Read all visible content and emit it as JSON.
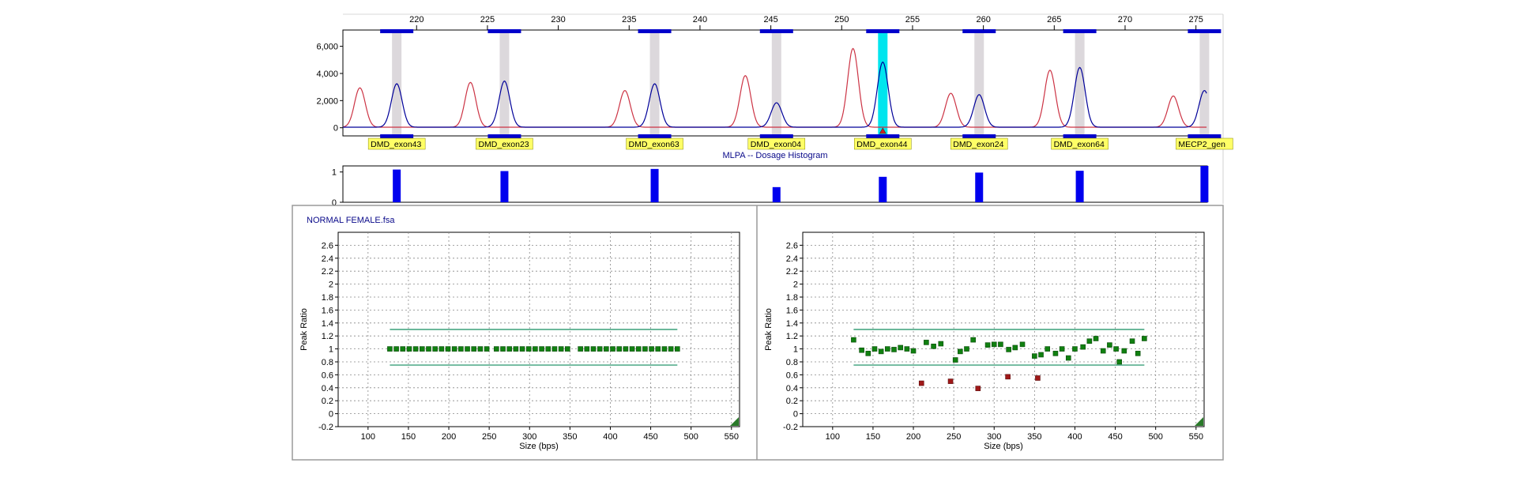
{
  "chart_data": [
    {
      "type": "line",
      "panel": "electropherogram",
      "x_ticks": [
        220,
        225,
        230,
        235,
        240,
        245,
        250,
        255,
        260,
        265,
        270,
        275
      ],
      "xlim": [
        214.8,
        275.8
      ],
      "y_ticks": [
        "6,000",
        "4,000",
        "2,000",
        "0"
      ],
      "y_tick_values": [
        6000,
        4000,
        2000,
        0
      ],
      "ylim": [
        -600,
        7200
      ],
      "colors": {
        "sample": "#000099",
        "reference": "#cc3344",
        "selected": "#00e5ee",
        "band": "#dcd8dc",
        "marker": "#0000cc"
      },
      "selected_peak": 4,
      "peaks": [
        {
          "label": "DMD_exon43",
          "size": 218.6,
          "height": 3200,
          "ref_size": 216.0,
          "ref_height": 2900
        },
        {
          "label": "DMD_exon23",
          "size": 226.2,
          "height": 3400,
          "ref_size": 223.8,
          "ref_height": 3300
        },
        {
          "label": "DMD_exon63",
          "size": 236.8,
          "height": 3200,
          "ref_size": 234.7,
          "ref_height": 2700
        },
        {
          "label": "DMD_exon04",
          "size": 245.4,
          "height": 1800,
          "ref_size": 243.2,
          "ref_height": 3800
        },
        {
          "label": "DMD_exon44",
          "size": 252.9,
          "height": 4800,
          "ref_size": 250.8,
          "ref_height": 5800
        },
        {
          "label": "DMD_exon24",
          "size": 259.7,
          "height": 2400,
          "ref_size": 257.7,
          "ref_height": 2500
        },
        {
          "label": "DMD_exon64",
          "size": 266.8,
          "height": 4400,
          "ref_size": 264.7,
          "ref_height": 4200
        },
        {
          "label": "MECP2_gen",
          "size": 275.6,
          "height": 2700,
          "ref_size": 273.4,
          "ref_height": 2300
        }
      ]
    },
    {
      "type": "bar",
      "panel": "dosage-histogram",
      "title": "MLPA -- Dosage Histogram",
      "y_ticks": [
        "1",
        "0"
      ],
      "ylim": [
        0,
        1.2
      ],
      "color": "#0000ee",
      "values": [
        1.08,
        1.03,
        1.1,
        0.5,
        0.84,
        0.98,
        1.04,
        1.2
      ]
    },
    {
      "type": "scatter",
      "panel": "left",
      "title": "NORMAL FEMALE.fsa",
      "xlabel": "Size (bps)",
      "ylabel": "Peak Ratio",
      "xlim": [
        63,
        560
      ],
      "ylim": [
        -0.2,
        2.8
      ],
      "x_ticks": [
        "100",
        "150",
        "200",
        "250",
        "300",
        "350",
        "400",
        "450",
        "500",
        "550"
      ],
      "y_ticks": [
        "2.6",
        "2.4",
        "2.2",
        "2",
        "1.8",
        "1.6",
        "1.4",
        "1.2",
        "1",
        "0.8",
        "0.6",
        "0.4",
        "0.2",
        "0",
        "-0.2"
      ],
      "thresholds": [
        1.3,
        0.75
      ],
      "colors": {
        "point": "#108010",
        "deleted": "#a01818",
        "threshold": "#3aa07a"
      },
      "points": [
        [
          127,
          1.0
        ],
        [
          135,
          1.0
        ],
        [
          143,
          1.0
        ],
        [
          151,
          1.0
        ],
        [
          159,
          1.0
        ],
        [
          167,
          1.0
        ],
        [
          175,
          1.0
        ],
        [
          183,
          1.0
        ],
        [
          191,
          1.0
        ],
        [
          199,
          1.0
        ],
        [
          207,
          1.0
        ],
        [
          215,
          1.0
        ],
        [
          223,
          1.0
        ],
        [
          231,
          1.0
        ],
        [
          239,
          1.0
        ],
        [
          247,
          1.0
        ],
        [
          259,
          1.0
        ],
        [
          267,
          1.0
        ],
        [
          275,
          1.0
        ],
        [
          283,
          1.0
        ],
        [
          291,
          1.0
        ],
        [
          299,
          1.0
        ],
        [
          307,
          1.0
        ],
        [
          315,
          1.0
        ],
        [
          323,
          1.0
        ],
        [
          331,
          1.0
        ],
        [
          339,
          1.0
        ],
        [
          347,
          1.0
        ],
        [
          363,
          1.0
        ],
        [
          371,
          1.0
        ],
        [
          379,
          1.0
        ],
        [
          387,
          1.0
        ],
        [
          395,
          1.0
        ],
        [
          403,
          1.0
        ],
        [
          411,
          1.0
        ],
        [
          419,
          1.0
        ],
        [
          427,
          1.0
        ],
        [
          435,
          1.0
        ],
        [
          443,
          1.0
        ],
        [
          451,
          1.0
        ],
        [
          459,
          1.0
        ],
        [
          467,
          1.0
        ],
        [
          475,
          1.0
        ],
        [
          483,
          1.0
        ]
      ],
      "deleted_points": []
    },
    {
      "type": "scatter",
      "panel": "right",
      "xlabel": "Size (bps)",
      "ylabel": "Peak Ratio",
      "xlim": [
        63,
        560
      ],
      "ylim": [
        -0.2,
        2.8
      ],
      "x_ticks": [
        "100",
        "150",
        "200",
        "250",
        "300",
        "350",
        "400",
        "450",
        "500",
        "550"
      ],
      "y_ticks": [
        "2.6",
        "2.4",
        "2.2",
        "2",
        "1.8",
        "1.6",
        "1.4",
        "1.2",
        "1",
        "0.8",
        "0.6",
        "0.4",
        "0.2",
        "0",
        "-0.2"
      ],
      "thresholds": [
        1.3,
        0.75
      ],
      "colors": {
        "point": "#108010",
        "deleted": "#a01818",
        "threshold": "#3aa07a"
      },
      "points": [
        [
          126,
          1.14
        ],
        [
          136,
          0.98
        ],
        [
          144,
          0.93
        ],
        [
          152,
          1.0
        ],
        [
          160,
          0.96
        ],
        [
          168,
          1.0
        ],
        [
          176,
          0.99
        ],
        [
          184,
          1.02
        ],
        [
          192,
          1.0
        ],
        [
          200,
          0.97
        ],
        [
          216,
          1.1
        ],
        [
          225,
          1.04
        ],
        [
          234,
          1.08
        ],
        [
          252,
          0.83
        ],
        [
          258,
          0.96
        ],
        [
          266,
          1.0
        ],
        [
          274,
          1.14
        ],
        [
          292,
          1.06
        ],
        [
          300,
          1.07
        ],
        [
          308,
          1.07
        ],
        [
          318,
          0.99
        ],
        [
          326,
          1.02
        ],
        [
          335,
          1.07
        ],
        [
          350,
          0.89
        ],
        [
          358,
          0.91
        ],
        [
          366,
          1.0
        ],
        [
          376,
          0.93
        ],
        [
          384,
          1.0
        ],
        [
          392,
          0.86
        ],
        [
          400,
          1.0
        ],
        [
          410,
          1.03
        ],
        [
          418,
          1.12
        ],
        [
          426,
          1.16
        ],
        [
          435,
          0.97
        ],
        [
          443,
          1.06
        ],
        [
          451,
          1.0
        ],
        [
          455,
          0.8
        ],
        [
          461,
          0.97
        ],
        [
          471,
          1.12
        ],
        [
          478,
          0.93
        ],
        [
          486,
          1.16
        ]
      ],
      "deleted_points": [
        [
          210,
          0.47
        ],
        [
          246,
          0.5
        ],
        [
          280,
          0.39
        ],
        [
          317,
          0.57
        ],
        [
          354,
          0.55
        ]
      ]
    }
  ]
}
